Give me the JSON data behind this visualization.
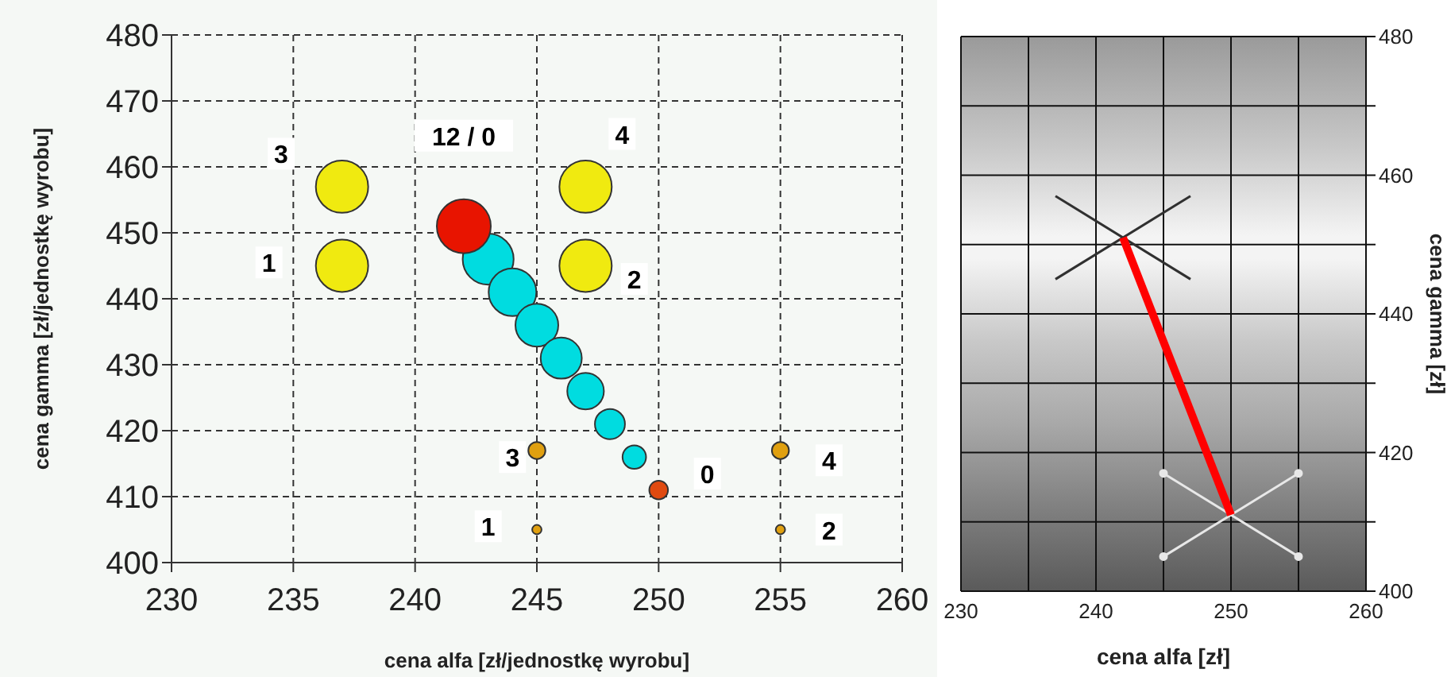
{
  "chart_data": [
    {
      "type": "bubble",
      "xlabel": "cena alfa [zł/jednostkę wyrobu]",
      "ylabel": "cena gamma [zł/jednostkę wyrobu]",
      "xlim": [
        230,
        260
      ],
      "xticks": [
        230,
        235,
        240,
        245,
        250,
        255,
        260
      ],
      "ylim": [
        400,
        480
      ],
      "yticks": [
        400,
        410,
        420,
        430,
        440,
        450,
        460,
        470,
        480
      ],
      "grid": true,
      "series": [
        {
          "color": "#f0ea10",
          "x": [
            237,
            237,
            247,
            247
          ],
          "values": [
            445,
            457,
            445,
            457
          ],
          "sizes": [
            0.94,
            0.94,
            0.94,
            0.94
          ]
        },
        {
          "color": "#00dce0",
          "x": [
            243,
            244,
            245,
            246,
            247,
            248,
            249
          ],
          "values": [
            446,
            441,
            436,
            431,
            426,
            421,
            416
          ],
          "sizes": [
            0.89,
            0.78,
            0.63,
            0.58,
            0.46,
            0.31,
            0.19
          ]
        },
        {
          "color": "#e81400",
          "x": [
            242
          ],
          "values": [
            451
          ],
          "sizes": [
            1
          ]
        },
        {
          "color": "#e04a10",
          "x": [
            250
          ],
          "values": [
            411
          ],
          "sizes": [
            0.12
          ]
        },
        {
          "color": "#e0a010",
          "x": [
            245,
            255,
            245,
            255
          ],
          "values": [
            405,
            405,
            417,
            417
          ],
          "sizes": [
            0.03,
            0.03,
            0.1,
            0.1
          ]
        }
      ],
      "annotations": [
        {
          "text": "3",
          "x": 234.5,
          "y": 462
        },
        {
          "text": "1",
          "x": 234,
          "y": 445.5
        },
        {
          "text": "12 / 0",
          "x": 242,
          "y": 451
        },
        {
          "text": "4",
          "x": 248.5,
          "y": 465
        },
        {
          "text": "2",
          "x": 249,
          "y": 443
        },
        {
          "text": "3",
          "x": 244,
          "y": 416
        },
        {
          "text": "0",
          "x": 252,
          "y": 413.5
        },
        {
          "text": "4",
          "x": 257,
          "y": 415.5
        },
        {
          "text": "1",
          "x": 243,
          "y": 405.5
        },
        {
          "text": "2",
          "x": 257,
          "y": 405
        }
      ]
    },
    {
      "type": "line",
      "xlabel": "cena alfa [zł]",
      "ylabel": "cena gamma [zł]",
      "xlim": [
        230,
        260
      ],
      "xticks": [
        230,
        {
          "value": 235,
          "label": null
        },
        240,
        {
          "value": 245,
          "label": null
        },
        250,
        {
          "value": 255,
          "label": null
        },
        260
      ],
      "ylim": [
        400,
        480
      ],
      "yticks": [
        400,
        {
          "value": 410,
          "label": null
        },
        420,
        {
          "value": 430,
          "label": null
        },
        440,
        {
          "value": 450,
          "label": null
        },
        460,
        {
          "value": 470,
          "label": null
        },
        480
      ],
      "grid": true,
      "marker": "none",
      "series": [
        {
          "color": "#303030",
          "x": [
            237,
            247
          ],
          "values": [
            457,
            445
          ]
        },
        {
          "color": "#303030",
          "x": [
            237,
            247
          ],
          "values": [
            445,
            457
          ]
        },
        {
          "color": "#e8e8e8",
          "x": [
            245,
            255
          ],
          "values": [
            417,
            405
          ],
          "marker": "circle"
        },
        {
          "color": "#e8e8e8",
          "x": [
            245,
            255
          ],
          "values": [
            405,
            417
          ],
          "marker": "circle"
        },
        {
          "color": "#ff0000",
          "x": [
            242,
            250
          ],
          "values": [
            451,
            411
          ]
        }
      ]
    }
  ]
}
